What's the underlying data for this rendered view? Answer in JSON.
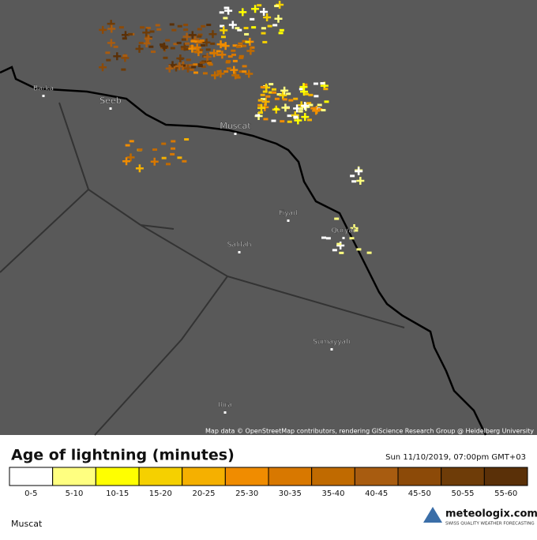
{
  "map": {
    "places": [
      {
        "label": "Barka"
      },
      {
        "label": "Seeb"
      },
      {
        "label": "Muscat"
      },
      {
        "label": "Fiyad"
      },
      {
        "label": "Quryat"
      },
      {
        "label": "Salifah"
      },
      {
        "label": "Sumayyah"
      },
      {
        "label": "Ibra"
      }
    ],
    "attribution": "Map data © OpenStreetMap contributors, rendering GIScience Research Group @ Heidelberg University"
  },
  "legend": {
    "title": "Age of lightning (minutes)",
    "timestamp": "Sun 11/10/2019, 07:00pm GMT+03",
    "items": [
      {
        "label": "0-5",
        "color": "#ffffff"
      },
      {
        "label": "5-10",
        "color": "#ffff80"
      },
      {
        "label": "10-15",
        "color": "#ffff00"
      },
      {
        "label": "15-20",
        "color": "#f5d000"
      },
      {
        "label": "20-25",
        "color": "#f5b000"
      },
      {
        "label": "25-30",
        "color": "#f08c00"
      },
      {
        "label": "30-35",
        "color": "#d87800"
      },
      {
        "label": "35-40",
        "color": "#c06a00"
      },
      {
        "label": "40-45",
        "color": "#a85c10"
      },
      {
        "label": "45-50",
        "color": "#8c4a08"
      },
      {
        "label": "50-55",
        "color": "#6e3c08"
      },
      {
        "label": "55-60",
        "color": "#5a3008"
      }
    ]
  },
  "footer": {
    "location": "Muscat",
    "brand": "meteologix.com",
    "tagline": "SWISS QUALITY WEATHER FORECASTING"
  }
}
